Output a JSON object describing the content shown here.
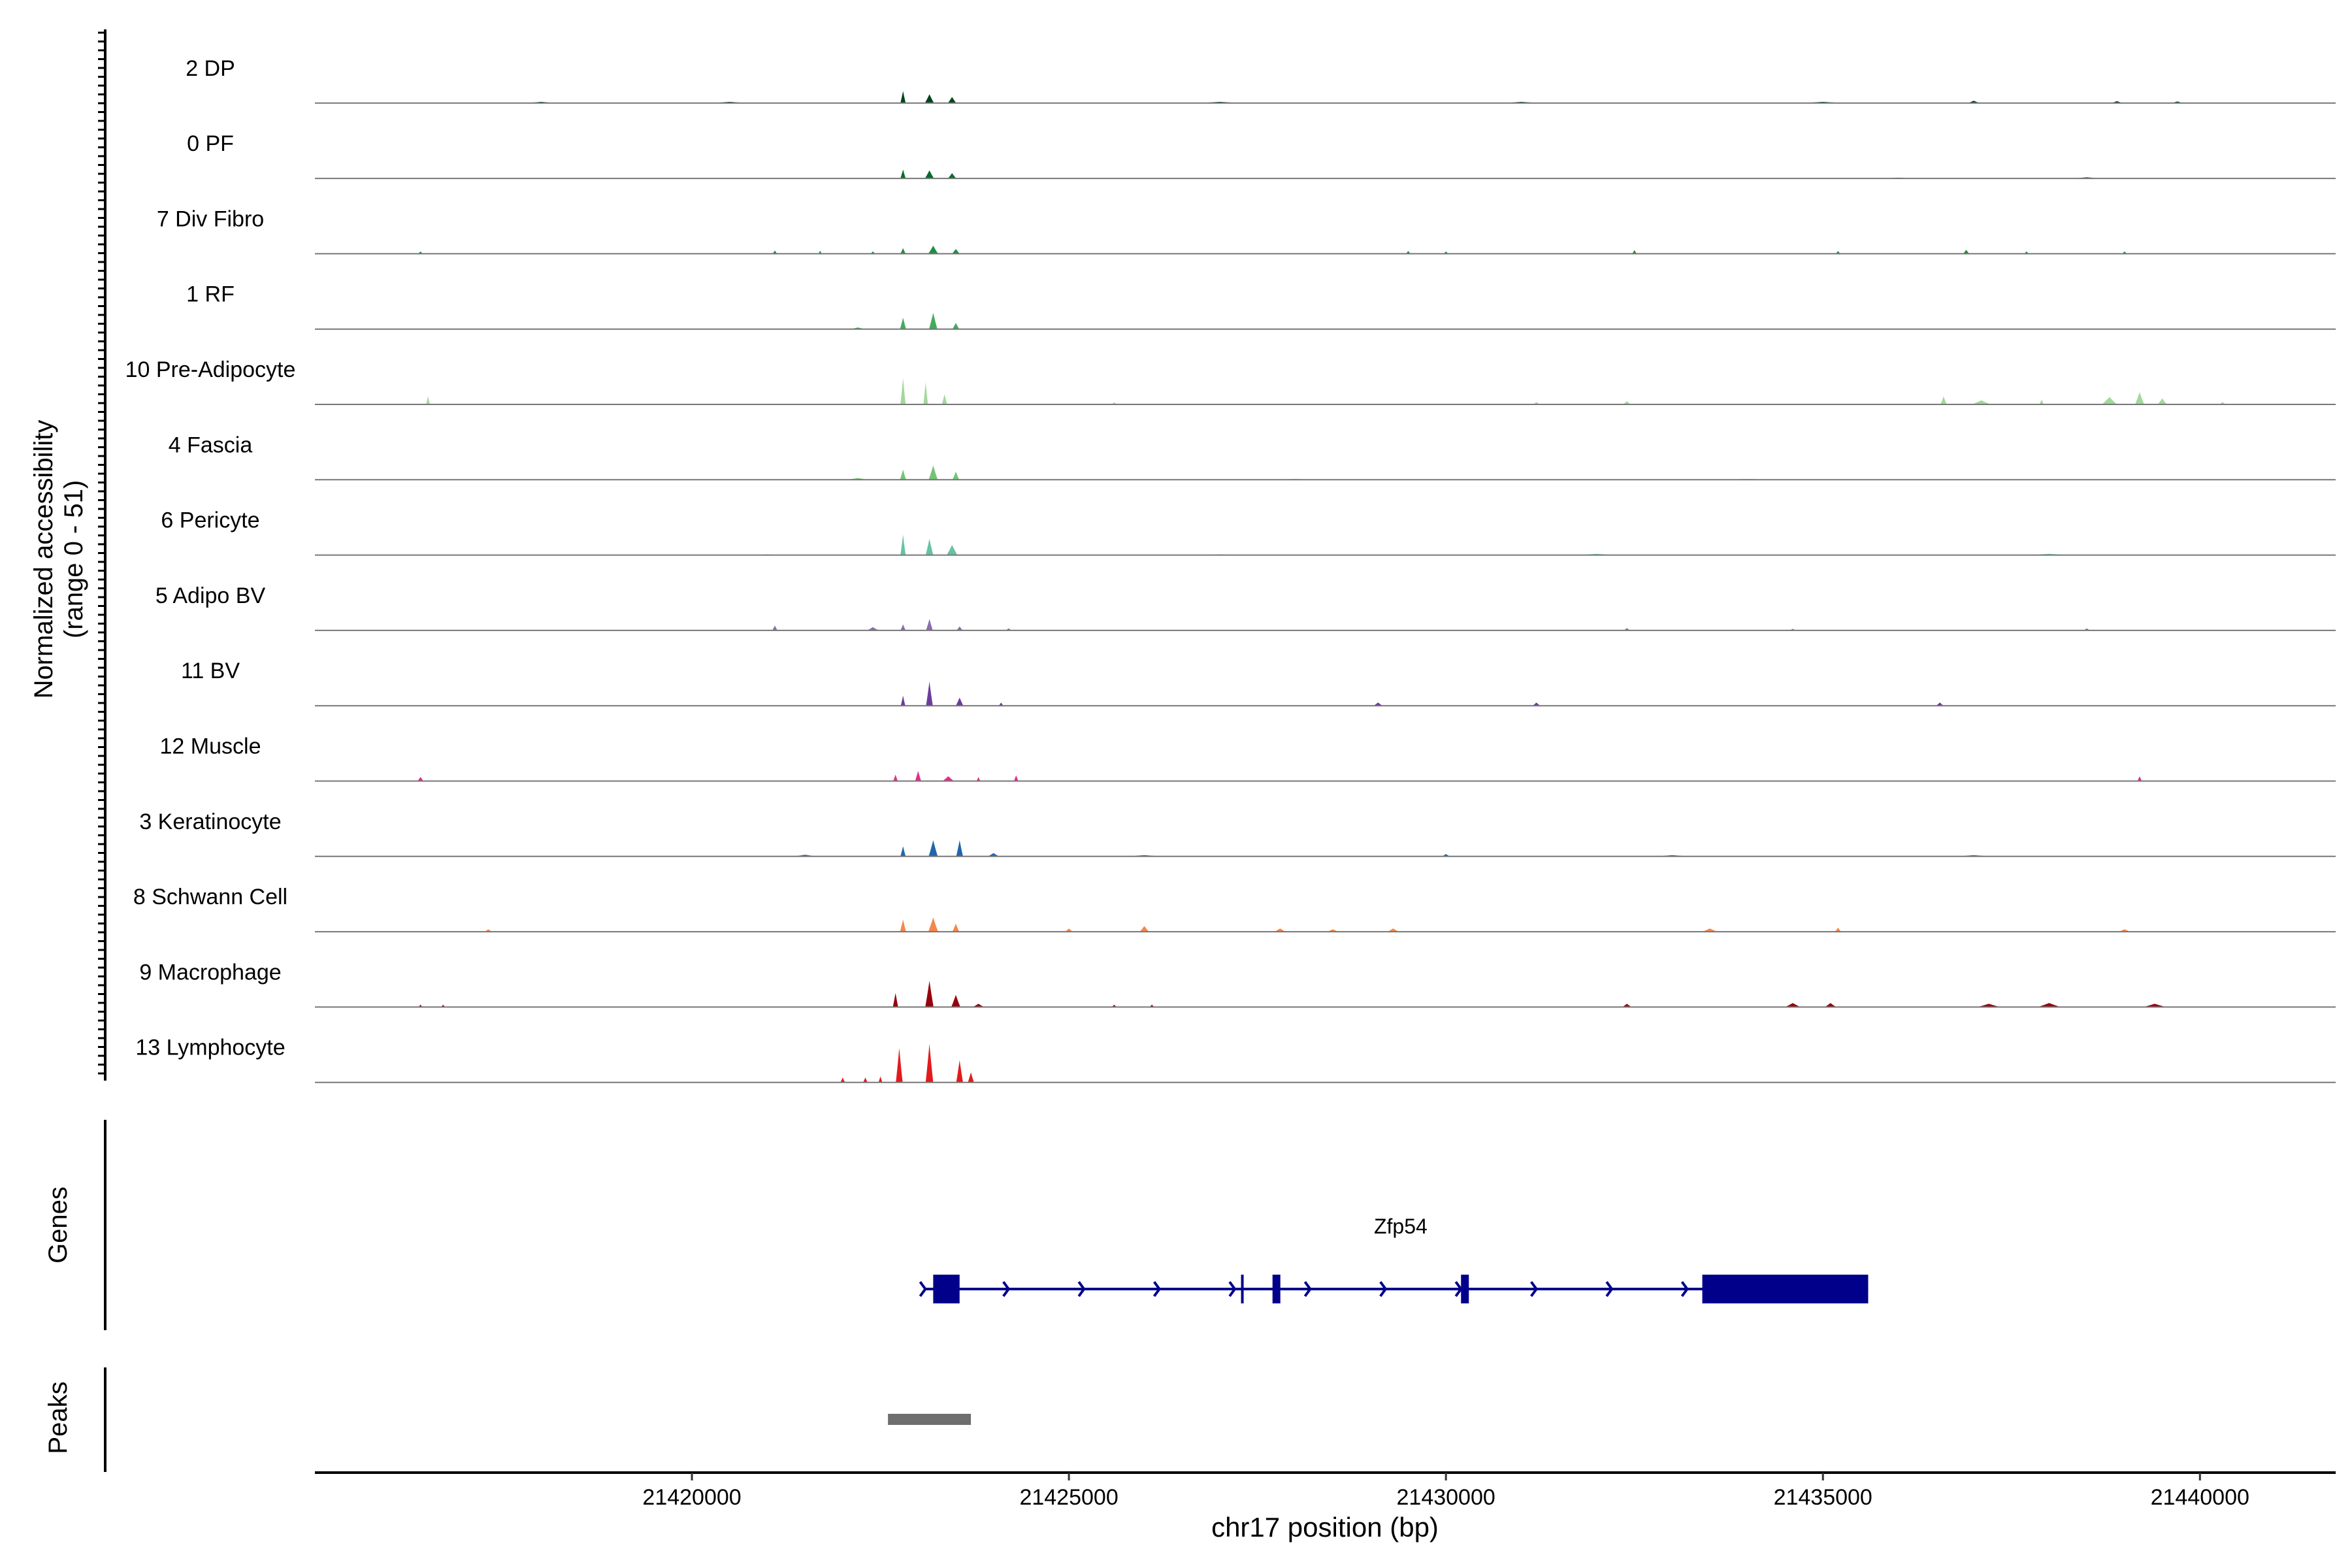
{
  "chart_data": {
    "type": "area",
    "title": "",
    "ylabel_line1": "Normalized accessibility",
    "ylabel_line2": "(range 0 - 51)",
    "y_range": [
      0,
      51
    ],
    "xlabel": "chr17 position (bp)",
    "xlim": [
      21415000,
      21441800
    ],
    "x_ticks": [
      21420000,
      21425000,
      21430000,
      21435000,
      21440000
    ],
    "x_tick_labels": [
      "21420000",
      "21425000",
      "21430000",
      "21435000",
      "21440000"
    ],
    "tracks": [
      {
        "name": "2 DP",
        "color": "#00441b",
        "peaks": [
          [
            21422800,
            0.3,
            70
          ],
          [
            21423150,
            0.22,
            120
          ],
          [
            21423450,
            0.15,
            110
          ],
          [
            21418000,
            0.03,
            400
          ],
          [
            21420500,
            0.03,
            500
          ],
          [
            21427000,
            0.03,
            600
          ],
          [
            21431000,
            0.03,
            500
          ],
          [
            21435000,
            0.03,
            600
          ],
          [
            21437000,
            0.06,
            150
          ],
          [
            21438900,
            0.05,
            150
          ],
          [
            21439700,
            0.04,
            150
          ]
        ]
      },
      {
        "name": "0 PF",
        "color": "#006d2c",
        "peaks": [
          [
            21422800,
            0.22,
            70
          ],
          [
            21423150,
            0.2,
            120
          ],
          [
            21423450,
            0.13,
            110
          ],
          [
            21436000,
            0.02,
            500
          ],
          [
            21438500,
            0.03,
            400
          ]
        ]
      },
      {
        "name": "7 Div Fibro",
        "color": "#238b45",
        "peaks": [
          [
            21422800,
            0.14,
            70
          ],
          [
            21423200,
            0.2,
            130
          ],
          [
            21423500,
            0.12,
            100
          ],
          [
            21416400,
            0.06,
            60
          ],
          [
            21421100,
            0.08,
            60
          ],
          [
            21421700,
            0.08,
            40
          ],
          [
            21422400,
            0.06,
            60
          ],
          [
            21429500,
            0.07,
            60
          ],
          [
            21430000,
            0.06,
            60
          ],
          [
            21432500,
            0.09,
            60
          ],
          [
            21435200,
            0.07,
            60
          ],
          [
            21436900,
            0.1,
            80
          ],
          [
            21437700,
            0.06,
            60
          ],
          [
            21439000,
            0.06,
            60
          ]
        ]
      },
      {
        "name": "1 RF",
        "color": "#41ab5d",
        "peaks": [
          [
            21422800,
            0.28,
            80
          ],
          [
            21423200,
            0.4,
            110
          ],
          [
            21423500,
            0.15,
            90
          ],
          [
            21422200,
            0.04,
            200
          ]
        ]
      },
      {
        "name": "10 Pre-Adipocyte",
        "color": "#a1d99b",
        "peaks": [
          [
            21422800,
            0.65,
            70
          ],
          [
            21423100,
            0.55,
            60
          ],
          [
            21423350,
            0.25,
            70
          ],
          [
            21416500,
            0.2,
            50
          ],
          [
            21425600,
            0.05,
            80
          ],
          [
            21431200,
            0.06,
            80
          ],
          [
            21432400,
            0.08,
            100
          ],
          [
            21436600,
            0.2,
            80
          ],
          [
            21437100,
            0.1,
            250
          ],
          [
            21437900,
            0.12,
            60
          ],
          [
            21438800,
            0.18,
            200
          ],
          [
            21439200,
            0.3,
            120
          ],
          [
            21439500,
            0.15,
            120
          ],
          [
            21440300,
            0.06,
            80
          ]
        ]
      },
      {
        "name": "4 Fascia",
        "color": "#74c476",
        "peaks": [
          [
            21422800,
            0.25,
            80
          ],
          [
            21423200,
            0.35,
            120
          ],
          [
            21423500,
            0.2,
            90
          ],
          [
            21422200,
            0.04,
            300
          ],
          [
            21428000,
            0.02,
            800
          ],
          [
            21434000,
            0.02,
            800
          ]
        ]
      },
      {
        "name": "6 Pericyte",
        "color": "#66c2a4",
        "peaks": [
          [
            21422800,
            0.5,
            70
          ],
          [
            21423150,
            0.4,
            100
          ],
          [
            21423450,
            0.25,
            140
          ],
          [
            21421000,
            0.02,
            400
          ],
          [
            21427000,
            0.02,
            400
          ],
          [
            21432000,
            0.03,
            600
          ],
          [
            21438000,
            0.03,
            600
          ]
        ]
      },
      {
        "name": "5 Adipo BV",
        "color": "#8c6bb1",
        "peaks": [
          [
            21421100,
            0.12,
            70
          ],
          [
            21422400,
            0.08,
            150
          ],
          [
            21422800,
            0.15,
            70
          ],
          [
            21423150,
            0.28,
            90
          ],
          [
            21423550,
            0.1,
            80
          ],
          [
            21424200,
            0.05,
            80
          ],
          [
            21432400,
            0.06,
            80
          ],
          [
            21434600,
            0.04,
            80
          ],
          [
            21438500,
            0.05,
            80
          ]
        ]
      },
      {
        "name": "11 BV",
        "color": "#6a3d9a",
        "peaks": [
          [
            21422800,
            0.25,
            60
          ],
          [
            21423150,
            0.6,
            90
          ],
          [
            21423550,
            0.2,
            100
          ],
          [
            21424100,
            0.08,
            60
          ],
          [
            21429100,
            0.08,
            120
          ],
          [
            21431200,
            0.08,
            100
          ],
          [
            21436550,
            0.08,
            100
          ]
        ]
      },
      {
        "name": "12 Muscle",
        "color": "#e7298a",
        "peaks": [
          [
            21422700,
            0.16,
            60
          ],
          [
            21423000,
            0.25,
            80
          ],
          [
            21423400,
            0.12,
            150
          ],
          [
            21423800,
            0.1,
            50
          ],
          [
            21424300,
            0.14,
            60
          ],
          [
            21416400,
            0.1,
            80
          ],
          [
            21439200,
            0.12,
            60
          ]
        ]
      },
      {
        "name": "3 Keratinocyte",
        "color": "#2166ac",
        "peaks": [
          [
            21422800,
            0.25,
            70
          ],
          [
            21423200,
            0.4,
            120
          ],
          [
            21423550,
            0.4,
            90
          ],
          [
            21424000,
            0.08,
            150
          ],
          [
            21421500,
            0.04,
            300
          ],
          [
            21426000,
            0.03,
            500
          ],
          [
            21430000,
            0.06,
            100
          ],
          [
            21433000,
            0.03,
            500
          ],
          [
            21437000,
            0.03,
            500
          ]
        ]
      },
      {
        "name": "8 Schwann Cell",
        "color": "#f4874b",
        "peaks": [
          [
            21422800,
            0.3,
            80
          ],
          [
            21423200,
            0.35,
            130
          ],
          [
            21423500,
            0.2,
            90
          ],
          [
            21417300,
            0.06,
            100
          ],
          [
            21425000,
            0.08,
            100
          ],
          [
            21426000,
            0.14,
            120
          ],
          [
            21427800,
            0.08,
            150
          ],
          [
            21428500,
            0.06,
            150
          ],
          [
            21429300,
            0.08,
            150
          ],
          [
            21433500,
            0.08,
            200
          ],
          [
            21435200,
            0.1,
            80
          ],
          [
            21439000,
            0.06,
            150
          ]
        ]
      },
      {
        "name": "9 Macrophage",
        "color": "#99000d",
        "peaks": [
          [
            21422700,
            0.35,
            70
          ],
          [
            21423150,
            0.65,
            110
          ],
          [
            21423500,
            0.3,
            120
          ],
          [
            21423800,
            0.08,
            150
          ],
          [
            21416400,
            0.06,
            50
          ],
          [
            21416700,
            0.06,
            50
          ],
          [
            21425600,
            0.06,
            60
          ],
          [
            21426100,
            0.06,
            60
          ],
          [
            21432400,
            0.08,
            120
          ],
          [
            21434600,
            0.1,
            200
          ],
          [
            21435100,
            0.1,
            150
          ],
          [
            21437200,
            0.08,
            300
          ],
          [
            21438000,
            0.1,
            300
          ],
          [
            21439400,
            0.08,
            300
          ]
        ]
      },
      {
        "name": "13 Lymphocyte",
        "color": "#e31a1c",
        "peaks": [
          [
            21422000,
            0.12,
            60
          ],
          [
            21422300,
            0.12,
            60
          ],
          [
            21422750,
            0.85,
            90
          ],
          [
            21423150,
            0.95,
            100
          ],
          [
            21423550,
            0.55,
            90
          ],
          [
            21423700,
            0.25,
            80
          ],
          [
            21422500,
            0.15,
            50
          ]
        ]
      }
    ],
    "genes_label": "Genes",
    "gene": {
      "name": "Zfp54",
      "color": "#00008b",
      "start": 21423200,
      "end": 21435600,
      "exons": [
        [
          21423200,
          21423550
        ],
        [
          21427700,
          21427800
        ],
        [
          21430200,
          21430300
        ],
        [
          21433400,
          21435600
        ]
      ],
      "thin_exons": [
        21427300
      ],
      "arrows": [
        21424200,
        21425200,
        21426200,
        21427200,
        21428200,
        21429200,
        21430200,
        21431200,
        21432200,
        21433200
      ]
    },
    "peaks_label": "Peaks",
    "peak_regions": [
      [
        21422600,
        21423700
      ]
    ],
    "peak_color": "#6e6e6e"
  }
}
